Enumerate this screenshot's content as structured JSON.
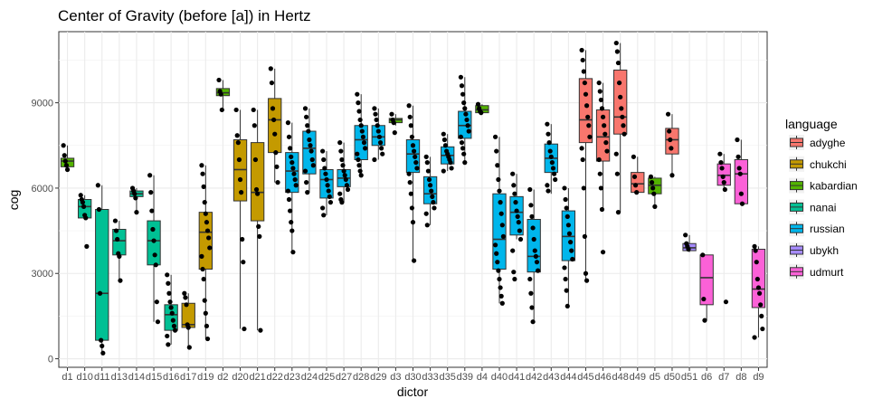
{
  "chart_data": {
    "type": "boxplot",
    "title": "Center of Gravity (before [a]) in Hertz",
    "xlabel": "dictor",
    "ylabel": "cog",
    "ylim": [
      -300,
      11500
    ],
    "yticks": [
      0,
      3000,
      6000,
      9000
    ],
    "grid": true,
    "legend": {
      "title": "language",
      "placement": "right",
      "entries": [
        {
          "name": "adyghe",
          "color": "#F8766D"
        },
        {
          "name": "chukchi",
          "color": "#C49A00"
        },
        {
          "name": "kabardian",
          "color": "#53B400"
        },
        {
          "name": "nanai",
          "color": "#00C094"
        },
        {
          "name": "russian",
          "color": "#00B6EB"
        },
        {
          "name": "ubykh",
          "color": "#A58AFF"
        },
        {
          "name": "udmurt",
          "color": "#FB61D7"
        }
      ]
    },
    "categories": [
      "d1",
      "d10",
      "d11",
      "d13",
      "d14",
      "d15",
      "d16",
      "d17",
      "d19",
      "d2",
      "d20",
      "d21",
      "d22",
      "d23",
      "d24",
      "d25",
      "d27",
      "d28",
      "d29",
      "d3",
      "d30",
      "d33",
      "d35",
      "d39",
      "d4",
      "d40",
      "d41",
      "d42",
      "d43",
      "d44",
      "d45",
      "d46",
      "d48",
      "d49",
      "d5",
      "d50",
      "d51",
      "d6",
      "d7",
      "d8",
      "d9"
    ],
    "boxes": [
      {
        "dictor": "d1",
        "language": "kabardian",
        "lower": 6650,
        "q1": 6750,
        "median": 6950,
        "q3": 7050,
        "upper": 7500,
        "points": [
          7500,
          7150,
          6950,
          6800,
          6650
        ]
      },
      {
        "dictor": "d10",
        "language": "nanai",
        "lower": 4950,
        "q1": 4950,
        "median": 5350,
        "q3": 5600,
        "upper": 5750,
        "points": [
          5750,
          5600,
          5500,
          5350,
          5050,
          4950,
          3950
        ]
      },
      {
        "dictor": "d11",
        "language": "nanai",
        "lower": 200,
        "q1": 650,
        "median": 2300,
        "q3": 5250,
        "upper": 6100,
        "points": [
          6100,
          5250,
          2300,
          650,
          450,
          200
        ]
      },
      {
        "dictor": "d13",
        "language": "nanai",
        "lower": 2750,
        "q1": 3650,
        "median": 4150,
        "q3": 4550,
        "upper": 4850,
        "points": [
          4850,
          4500,
          4200,
          3700,
          3600,
          2750
        ]
      },
      {
        "dictor": "d14",
        "language": "nanai",
        "lower": 5150,
        "q1": 5700,
        "median": 5800,
        "q3": 5900,
        "upper": 6000,
        "points": [
          6000,
          5900,
          5800,
          5650,
          5150
        ]
      },
      {
        "dictor": "d15",
        "language": "nanai",
        "lower": 1300,
        "q1": 3300,
        "median": 4150,
        "q3": 4850,
        "upper": 6450,
        "points": [
          6450,
          5850,
          5200,
          4550,
          4150,
          3650,
          3300,
          2000,
          1300
        ]
      },
      {
        "dictor": "d16",
        "language": "nanai",
        "lower": 500,
        "q1": 1000,
        "median": 1550,
        "q3": 1900,
        "upper": 2950,
        "points": [
          2950,
          2650,
          2300,
          2000,
          1800,
          1600,
          1350,
          1150,
          1000,
          800,
          500
        ]
      },
      {
        "dictor": "d17",
        "language": "chukchi",
        "lower": 400,
        "q1": 1100,
        "median": 1200,
        "q3": 1950,
        "upper": 2300,
        "points": [
          2300,
          2150,
          1900,
          1200,
          1100,
          400
        ]
      },
      {
        "dictor": "d19",
        "language": "chukchi",
        "lower": 700,
        "q1": 3150,
        "median": 4450,
        "q3": 5150,
        "upper": 6800,
        "points": [
          6800,
          6500,
          6050,
          5500,
          5100,
          4800,
          4500,
          4250,
          3900,
          3600,
          3150,
          2800,
          2050,
          1600,
          1150,
          700
        ]
      },
      {
        "dictor": "d2",
        "language": "kabardian",
        "lower": 8750,
        "q1": 9250,
        "median": 9350,
        "q3": 9500,
        "upper": 9800,
        "points": [
          9800,
          9400,
          9300,
          8750
        ]
      },
      {
        "dictor": "d20",
        "language": "chukchi",
        "lower": 1050,
        "q1": 5550,
        "median": 6650,
        "q3": 7700,
        "upper": 8750,
        "points": [
          8750,
          7850,
          7600,
          7000,
          6300,
          5850,
          4200,
          3400,
          1050
        ]
      },
      {
        "dictor": "d21",
        "language": "chukchi",
        "lower": 1000,
        "q1": 4850,
        "median": 5850,
        "q3": 7600,
        "upper": 8750,
        "points": [
          8750,
          8200,
          7000,
          5950,
          5800,
          4650,
          4300,
          1000
        ]
      },
      {
        "dictor": "d22",
        "language": "chukchi",
        "lower": 6200,
        "q1": 7250,
        "median": 8400,
        "q3": 9150,
        "upper": 10200,
        "points": [
          10200,
          9700,
          8800,
          8400,
          7900,
          7250,
          6750,
          6200
        ]
      },
      {
        "dictor": "d23",
        "language": "russian",
        "lower": 3750,
        "q1": 5850,
        "median": 6600,
        "q3": 7250,
        "upper": 8300,
        "points": [
          8300,
          7800,
          7400,
          7100,
          6900,
          6700,
          6500,
          6300,
          6100,
          5900,
          5600,
          5200,
          4800,
          4500,
          3750
        ]
      },
      {
        "dictor": "d24",
        "language": "russian",
        "lower": 5850,
        "q1": 6500,
        "median": 7400,
        "q3": 8000,
        "upper": 8800,
        "points": [
          8800,
          8500,
          8200,
          8000,
          7700,
          7500,
          7300,
          7000,
          6800,
          6600,
          6200,
          5850
        ]
      },
      {
        "dictor": "d25",
        "language": "russian",
        "lower": 5050,
        "q1": 5650,
        "median": 6300,
        "q3": 6650,
        "upper": 7300,
        "points": [
          7300,
          7000,
          6700,
          6500,
          6300,
          6100,
          5900,
          5700,
          5500,
          5300,
          5050
        ]
      },
      {
        "dictor": "d27",
        "language": "russian",
        "lower": 5500,
        "q1": 6050,
        "median": 6350,
        "q3": 6650,
        "upper": 7600,
        "points": [
          7600,
          7300,
          7000,
          6800,
          6600,
          6450,
          6300,
          6100,
          5950,
          5800,
          5600,
          5500
        ]
      },
      {
        "dictor": "d28",
        "language": "russian",
        "lower": 6450,
        "q1": 7000,
        "median": 7700,
        "q3": 8200,
        "upper": 9300,
        "points": [
          9300,
          9000,
          8700,
          8400,
          8200,
          8000,
          7800,
          7600,
          7400,
          7200,
          7000,
          6800,
          6600,
          6450
        ]
      },
      {
        "dictor": "d29",
        "language": "russian",
        "lower": 7000,
        "q1": 7500,
        "median": 7800,
        "q3": 8200,
        "upper": 8800,
        "points": [
          8800,
          8600,
          8400,
          8200,
          8000,
          7800,
          7600,
          7400,
          7200,
          7000
        ]
      },
      {
        "dictor": "d3",
        "language": "kabardian",
        "lower": 8200,
        "q1": 8300,
        "median": 8400,
        "q3": 8450,
        "upper": 8600,
        "points": [
          8600,
          8400,
          8300,
          7950
        ]
      },
      {
        "dictor": "d30",
        "language": "russian",
        "lower": 3450,
        "q1": 6550,
        "median": 7200,
        "q3": 7700,
        "upper": 8900,
        "points": [
          8900,
          8500,
          8200,
          7800,
          7500,
          7300,
          7100,
          6900,
          6700,
          6500,
          6200,
          5800,
          5300,
          4800,
          3450
        ]
      },
      {
        "dictor": "d33",
        "language": "russian",
        "lower": 4700,
        "q1": 5450,
        "median": 5800,
        "q3": 6400,
        "upper": 7100,
        "points": [
          7100,
          6900,
          6600,
          6300,
          6100,
          5900,
          5700,
          5500,
          5300,
          5100,
          4700
        ]
      },
      {
        "dictor": "d35",
        "language": "russian",
        "lower": 6600,
        "q1": 6850,
        "median": 7150,
        "q3": 7450,
        "upper": 7900,
        "points": [
          7900,
          7700,
          7500,
          7300,
          7200,
          7100,
          7000,
          6900,
          6700,
          6600
        ]
      },
      {
        "dictor": "d39",
        "language": "russian",
        "lower": 6900,
        "q1": 7750,
        "median": 8200,
        "q3": 8700,
        "upper": 9900,
        "points": [
          9900,
          9600,
          9300,
          9000,
          8800,
          8600,
          8400,
          8200,
          8000,
          7800,
          7600,
          7400,
          7200,
          6900
        ]
      },
      {
        "dictor": "d4",
        "language": "kabardian",
        "lower": 8600,
        "q1": 8650,
        "median": 8750,
        "q3": 8900,
        "upper": 8950,
        "points": [
          8950,
          8800,
          8700,
          8650
        ]
      },
      {
        "dictor": "d40",
        "language": "russian",
        "lower": 1950,
        "q1": 3150,
        "median": 4200,
        "q3": 5800,
        "upper": 7800,
        "points": [
          7800,
          7300,
          6800,
          6300,
          5900,
          5500,
          5100,
          4700,
          4300,
          4000,
          3700,
          3400,
          3100,
          2800,
          2500,
          2200,
          1950
        ]
      },
      {
        "dictor": "d41",
        "language": "russian",
        "lower": 4200,
        "q1": 4350,
        "median": 5150,
        "q3": 5700,
        "upper": 6500,
        "points": [
          6500,
          6100,
          5800,
          5500,
          5200,
          5000,
          4800,
          4500,
          4200,
          3800,
          3050,
          2800
        ]
      },
      {
        "dictor": "d42",
        "language": "russian",
        "lower": 1300,
        "q1": 3050,
        "median": 3600,
        "q3": 4900,
        "upper": 5950,
        "points": [
          5950,
          5400,
          5000,
          4600,
          4200,
          3800,
          3600,
          3400,
          3100,
          2800,
          2300,
          1800,
          1300
        ]
      },
      {
        "dictor": "d43",
        "language": "russian",
        "lower": 5800,
        "q1": 6550,
        "median": 7050,
        "q3": 7550,
        "upper": 8250,
        "points": [
          8250,
          7900,
          7600,
          7300,
          7100,
          6900,
          6700,
          6500,
          6300,
          6100,
          5900
        ]
      },
      {
        "dictor": "d44",
        "language": "russian",
        "lower": 1850,
        "q1": 3450,
        "median": 4300,
        "q3": 5200,
        "upper": 6000,
        "points": [
          6000,
          5600,
          5300,
          5000,
          4700,
          4400,
          4100,
          3800,
          3500,
          3200,
          2800,
          2400,
          1850
        ]
      },
      {
        "dictor": "d45",
        "language": "adyghe",
        "lower": 2750,
        "q1": 7600,
        "median": 8400,
        "q3": 9850,
        "upper": 10850,
        "points": [
          10850,
          10500,
          10100,
          9700,
          9300,
          8900,
          8500,
          8200,
          7800,
          7400,
          7000,
          6000,
          4300,
          3000,
          2750
        ]
      },
      {
        "dictor": "d46",
        "language": "adyghe",
        "lower": 5250,
        "q1": 6950,
        "median": 7800,
        "q3": 8750,
        "upper": 9700,
        "points": [
          9700,
          9400,
          9100,
          8800,
          8500,
          8200,
          7900,
          7600,
          7300,
          7000,
          6500,
          6000,
          5250,
          3750
        ]
      },
      {
        "dictor": "d48",
        "language": "adyghe",
        "lower": 5150,
        "q1": 7900,
        "median": 8500,
        "q3": 10150,
        "upper": 11100,
        "points": [
          11100,
          10800,
          10400,
          9700,
          9200,
          8800,
          8500,
          8200,
          7900,
          7200,
          6500,
          5150
        ]
      },
      {
        "dictor": "d49",
        "language": "adyghe",
        "lower": 5800,
        "q1": 5850,
        "median": 6150,
        "q3": 6550,
        "upper": 7100,
        "points": [
          7100,
          6400,
          6100,
          5850
        ]
      },
      {
        "dictor": "d5",
        "language": "kabardian",
        "lower": 5350,
        "q1": 5800,
        "median": 6100,
        "q3": 6350,
        "upper": 6400,
        "points": [
          6400,
          6200,
          6000,
          5800,
          5350
        ]
      },
      {
        "dictor": "d50",
        "language": "adyghe",
        "lower": 6450,
        "q1": 7200,
        "median": 7700,
        "q3": 8100,
        "upper": 8600,
        "points": [
          8600,
          8000,
          7700,
          7400,
          6450
        ]
      },
      {
        "dictor": "d51",
        "language": "ubykh",
        "lower": 3750,
        "q1": 3800,
        "median": 3900,
        "q3": 4050,
        "upper": 4350,
        "points": [
          4350,
          4050,
          3950,
          3850
        ]
      },
      {
        "dictor": "d6",
        "language": "udmurt",
        "lower": 1350,
        "q1": 1900,
        "median": 2850,
        "q3": 3650,
        "upper": 3650,
        "points": [
          3650,
          2100,
          1350
        ]
      },
      {
        "dictor": "d7",
        "language": "udmurt",
        "lower": 5950,
        "q1": 6100,
        "median": 6450,
        "q3": 6850,
        "upper": 7200,
        "points": [
          7200,
          6900,
          6700,
          6400,
          6200,
          5950,
          2000
        ]
      },
      {
        "dictor": "d8",
        "language": "udmurt",
        "lower": 5450,
        "q1": 5450,
        "median": 6500,
        "q3": 7000,
        "upper": 7700,
        "points": [
          7700,
          7100,
          6700,
          6500,
          5800,
          5450
        ]
      },
      {
        "dictor": "d9",
        "language": "udmurt",
        "lower": 750,
        "q1": 1800,
        "median": 2450,
        "q3": 3850,
        "upper": 3950,
        "points": [
          3950,
          3800,
          3400,
          2800,
          2500,
          2300,
          1900,
          1500,
          1050,
          750
        ]
      }
    ]
  }
}
